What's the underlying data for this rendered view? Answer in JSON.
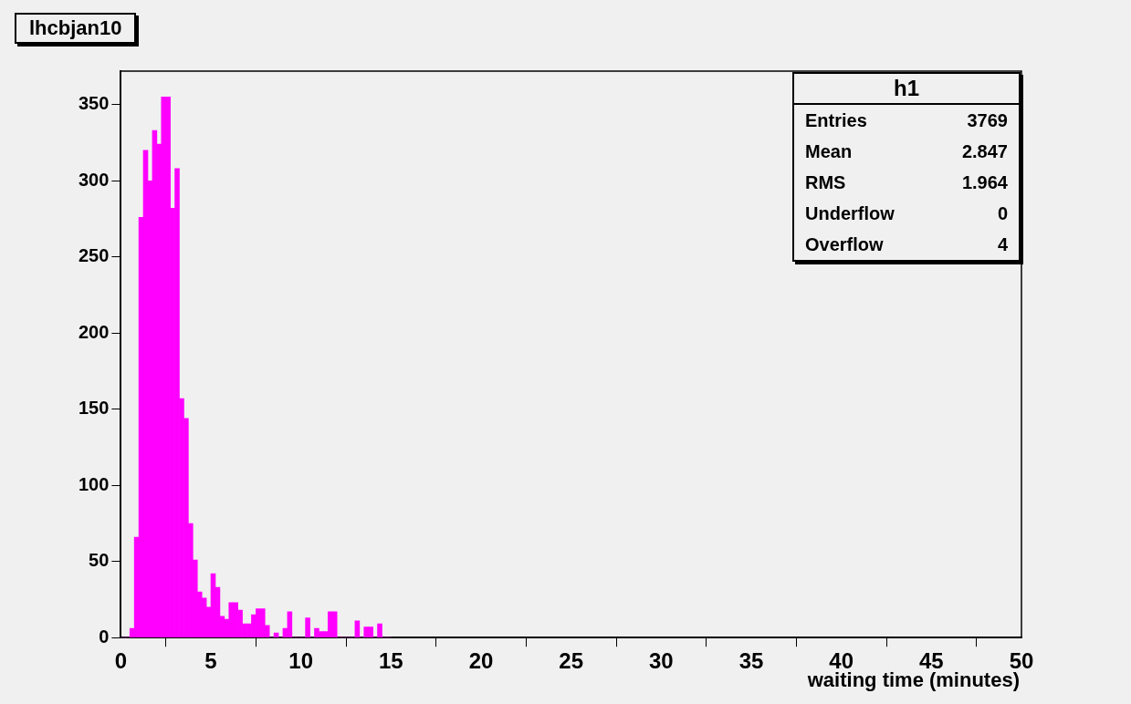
{
  "chart_data": {
    "type": "histogram",
    "title": "lhcbjan10",
    "xlabel": "waiting time (minutes)",
    "bins": [
      0,
      0.25,
      0.5,
      0.75,
      1,
      1.25,
      1.5,
      1.75,
      2,
      2.25,
      2.5,
      2.75,
      3,
      3.25,
      3.5,
      3.75,
      4,
      4.25,
      4.5,
      4.75,
      5,
      5.25,
      5.5,
      5.75,
      6,
      6.25,
      6.5,
      6.75,
      7,
      7.25,
      7.5,
      7.75,
      8,
      8.25,
      8.5,
      8.75,
      9,
      9.25,
      9.5,
      9.75,
      10,
      10.25,
      10.5,
      10.75,
      11,
      11.25,
      11.5,
      11.75,
      12,
      12.25,
      12.5,
      12.75,
      13,
      13.25,
      13.5,
      13.75,
      14,
      14.25,
      14.5,
      14.75,
      15
    ],
    "values": [
      0,
      0,
      6,
      66,
      276,
      320,
      300,
      333,
      324,
      355,
      355,
      282,
      308,
      157,
      144,
      75,
      51,
      30,
      26,
      20,
      42,
      33,
      14,
      12,
      23,
      23,
      18,
      9,
      9,
      15,
      19,
      19,
      8,
      0,
      3,
      0,
      6,
      17,
      0,
      0,
      0,
      13,
      0,
      6,
      4,
      4,
      17,
      17,
      0,
      0,
      0,
      0,
      11,
      0,
      7,
      7,
      0,
      9,
      0,
      0
    ],
    "color": "#ff00ff",
    "xlim": [
      0,
      50
    ],
    "xticks": [
      0,
      5,
      10,
      15,
      20,
      25,
      30,
      35,
      40,
      45,
      50
    ],
    "ylim": [
      0,
      372
    ],
    "yticks": [
      0,
      50,
      100,
      150,
      200,
      250,
      300,
      350
    ],
    "grid": false,
    "legend": false,
    "annotations": [
      "h1",
      "Entries",
      "3769",
      "Mean",
      "2.847",
      "RMS",
      "1.964",
      "Underflow",
      "0",
      "Overflow",
      "4"
    ]
  }
}
